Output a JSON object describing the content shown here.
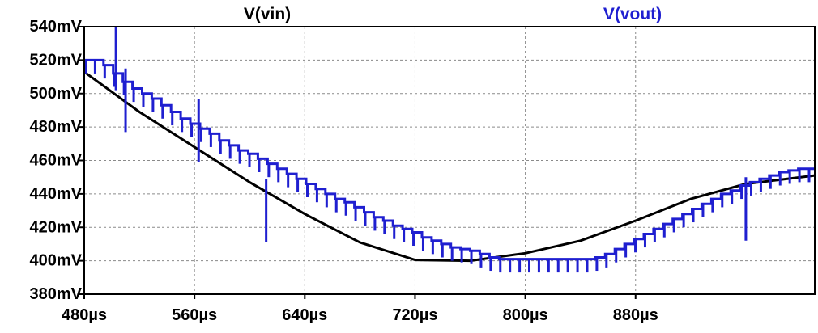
{
  "chart_data": {
    "type": "line",
    "x_unit": "µs",
    "y_unit": "mV",
    "xlim": [
      480,
      1010
    ],
    "ylim": [
      380,
      540
    ],
    "x_ticks": [
      {
        "value": 480,
        "label": "480µs"
      },
      {
        "value": 560,
        "label": "560µs"
      },
      {
        "value": 640,
        "label": "640µs"
      },
      {
        "value": 720,
        "label": "720µs"
      },
      {
        "value": 800,
        "label": "800µs"
      },
      {
        "value": 880,
        "label": "880µs"
      }
    ],
    "y_ticks": [
      {
        "value": 540,
        "label": "540mV"
      },
      {
        "value": 520,
        "label": "520mV"
      },
      {
        "value": 500,
        "label": "500mV"
      },
      {
        "value": 480,
        "label": "480mV"
      },
      {
        "value": 460,
        "label": "460mV"
      },
      {
        "value": 440,
        "label": "440mV"
      },
      {
        "value": 420,
        "label": "420mV"
      },
      {
        "value": 400,
        "label": "400mV"
      },
      {
        "value": 380,
        "label": "380mV"
      }
    ],
    "grid": true,
    "series": [
      {
        "name": "V(vin)",
        "color": "#000000",
        "x": [
          480,
          520,
          560,
          600,
          640,
          680,
          720,
          760,
          800,
          840,
          880,
          920,
          960,
          1010
        ],
        "y": [
          513,
          489,
          468,
          447,
          428,
          411,
          400.5,
          400,
          404.5,
          412,
          424,
          437,
          446,
          451
        ]
      },
      {
        "name": "V(vout)",
        "color": "#1f1fd0",
        "sample_x": [
          480,
          487,
          494,
          501,
          508,
          515,
          522,
          529,
          536,
          543,
          550,
          557,
          564,
          571,
          578,
          585,
          592,
          599,
          606,
          613,
          620,
          627,
          634,
          641,
          648,
          655,
          662,
          669,
          676,
          683,
          690,
          697,
          704,
          711,
          718,
          725,
          732,
          739,
          746,
          753,
          760,
          767,
          774,
          781,
          788,
          795,
          802,
          809,
          816,
          823,
          830,
          837,
          844,
          851,
          858,
          865,
          872,
          879,
          886,
          893,
          900,
          907,
          914,
          921,
          928,
          935,
          942,
          949,
          956,
          963,
          970,
          977,
          984,
          991,
          998,
          1005
        ],
        "sample_y": [
          520,
          520,
          517,
          512,
          507,
          503,
          500,
          497,
          493,
          489,
          485,
          482,
          479,
          476,
          472,
          469,
          466,
          464,
          461,
          458,
          455,
          452,
          449,
          446,
          443,
          440,
          437,
          435,
          432,
          429,
          426,
          424,
          421,
          419,
          417,
          414,
          412,
          410,
          408,
          407,
          406,
          404,
          402,
          401,
          401,
          401,
          401,
          401,
          401,
          401,
          401,
          401,
          401,
          402,
          404,
          407,
          410,
          413,
          416,
          419,
          422,
          425,
          428,
          431,
          434,
          437,
          440,
          442,
          445,
          447,
          449,
          451,
          453,
          454,
          455,
          455
        ],
        "min_y": 393,
        "spikes": [
          {
            "x": 503,
            "y": 540
          },
          {
            "x": 510,
            "y": 515
          },
          {
            "x": 563,
            "y": 497
          },
          {
            "x": 612,
            "y": 449
          },
          {
            "x": 960,
            "y": 450
          }
        ]
      }
    ]
  }
}
